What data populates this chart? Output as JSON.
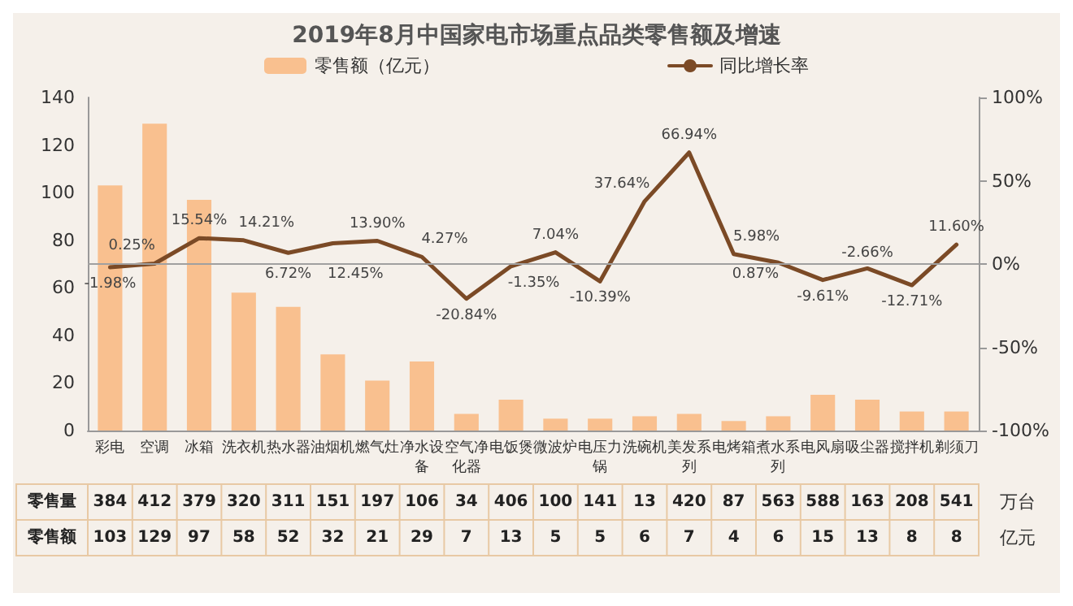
{
  "chart_data": {
    "type": "bar",
    "title": "2019年8月中国家电市场重点品类零售额及增速",
    "categories": [
      "彩电",
      "空调",
      "冰箱",
      "洗衣机",
      "热水器",
      "油烟机",
      "燃气灶",
      "净水设备",
      "空气净化器",
      "电饭煲",
      "微波炉",
      "电压力锅",
      "洗碗机",
      "美发系列",
      "电烤箱",
      "煮水系列",
      "电风扇",
      "吸尘器",
      "搅拌机",
      "剃须刀"
    ],
    "series": [
      {
        "name": "零售额（亿元）",
        "color": "#f9c08f",
        "values": [
          103,
          129,
          97,
          58,
          52,
          32,
          21,
          29,
          7,
          13,
          5,
          5,
          6,
          7,
          4,
          6,
          15,
          13,
          8,
          8
        ]
      },
      {
        "name": "同比增长率",
        "type": "line",
        "axis": "y2",
        "color": "#7b4a26",
        "values": [
          -1.98,
          0.25,
          15.54,
          14.21,
          6.72,
          12.45,
          13.9,
          4.27,
          -20.84,
          -1.35,
          7.04,
          -10.39,
          37.64,
          66.94,
          5.98,
          0.87,
          -9.61,
          -2.66,
          -12.71,
          11.6
        ],
        "value_labels": [
          "-1.98%",
          "0.25%",
          "15.54%",
          "14.21%",
          "6.72%",
          "12.45%",
          "13.90%",
          "4.27%",
          "-20.84%",
          "-1.35%",
          "7.04%",
          "-10.39%",
          "37.64%",
          "66.94%",
          "5.98%",
          "0.87%",
          "-9.61%",
          "-2.66%",
          "-12.71%",
          "11.60%"
        ]
      },
      {
        "name": "零售量",
        "type": "other",
        "values": [
          null,
          null,
          null,
          null,
          null,
          null,
          null,
          null,
          null,
          null,
          null,
          null,
          null,
          null,
          null,
          null,
          null,
          null,
          null,
          null
        ],
        "value_labels": [
          "384",
          "412",
          "379",
          "320",
          "311",
          "151",
          "197",
          "106",
          "34",
          "406",
          "100",
          "141",
          "13",
          "420",
          "87",
          "563",
          "588",
          "163",
          "208",
          "541"
        ]
      }
    ],
    "data_labels": true,
    "annotations": [
      "零售额",
      "万台",
      "亿元"
    ],
    "ylim": [
      0,
      140
    ],
    "yticks": [
      0,
      20,
      40,
      60,
      80,
      100,
      120,
      140
    ],
    "y2lim": [
      -100,
      100
    ],
    "y2ticks": [
      {
        "value": -100,
        "label": "-100%"
      },
      {
        "value": -50,
        "label": "-50%"
      },
      {
        "value": 0,
        "label": "0%"
      },
      {
        "value": 50,
        "label": "50%"
      },
      {
        "value": 100,
        "label": "100%"
      }
    ],
    "ref_lines": [
      {
        "axis": "y2",
        "value": 0,
        "color": "#a0a0a0"
      }
    ],
    "grid": false,
    "legend": "top",
    "marker": "none",
    "line_style": "solid"
  }
}
